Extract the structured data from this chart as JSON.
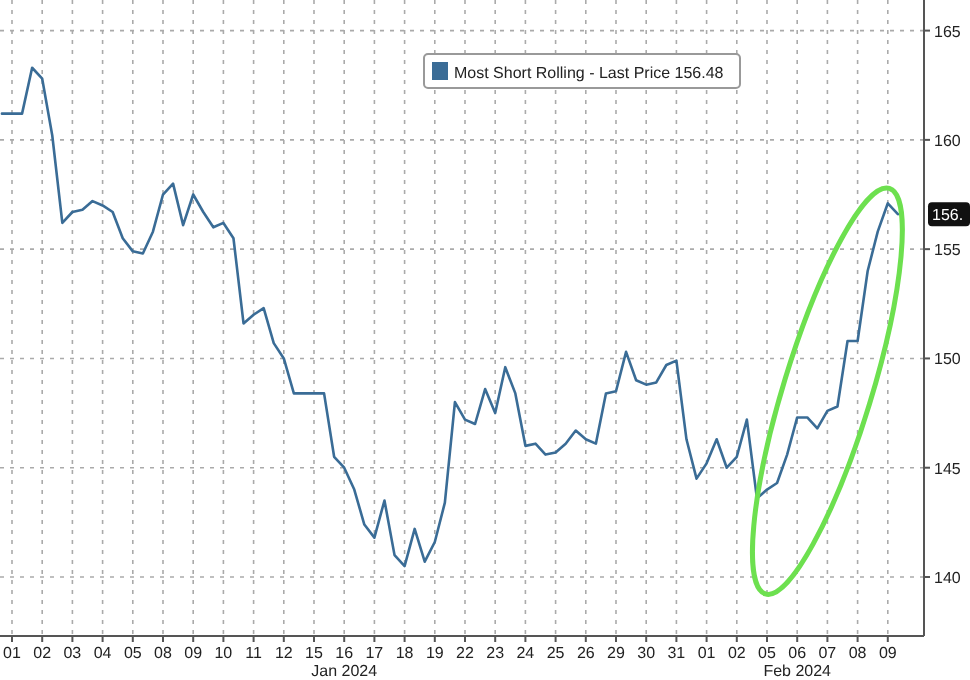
{
  "chart_data": {
    "type": "line",
    "legend": "top",
    "grid": true,
    "marker": "none",
    "line_style": "solid",
    "ylim": [
      137.3,
      166.4
    ],
    "yticks": [
      140,
      145,
      150,
      155,
      160,
      165
    ],
    "categories": [
      null,
      "01",
      null,
      null,
      "02",
      null,
      null,
      "03",
      null,
      null,
      "04",
      null,
      null,
      "05",
      null,
      null,
      "08",
      null,
      null,
      "09",
      null,
      null,
      "10",
      null,
      null,
      "11",
      null,
      null,
      "12",
      null,
      null,
      "15",
      null,
      null,
      "16",
      null,
      null,
      "17",
      null,
      null,
      "18",
      null,
      null,
      "19",
      null,
      null,
      "22",
      null,
      null,
      "23",
      null,
      null,
      "24",
      null,
      null,
      "25",
      null,
      null,
      "26",
      null,
      null,
      "29",
      null,
      null,
      "30",
      null,
      null,
      "31",
      null,
      null,
      "01",
      null,
      null,
      "02",
      null,
      null,
      "05",
      null,
      null,
      "06",
      null,
      null,
      "07",
      null,
      null,
      "08",
      null,
      null,
      "09",
      null
    ],
    "annotations": [
      "Jan 2024",
      "Feb 2024",
      "156."
    ],
    "series": [
      {
        "name": "Most Short Rolling - Last Price 156.48",
        "color": "#3a6c96",
        "values": [
          161.2,
          161.2,
          161.2,
          163.3,
          162.8,
          160.2,
          156.2,
          156.7,
          156.8,
          157.2,
          157.0,
          156.7,
          155.5,
          154.9,
          154.8,
          155.8,
          157.5,
          158.0,
          156.1,
          157.5,
          156.7,
          156.0,
          156.2,
          155.5,
          151.6,
          152.0,
          152.3,
          150.7,
          150.0,
          148.4,
          148.4,
          148.4,
          148.4,
          145.5,
          145.0,
          144.0,
          142.4,
          141.8,
          143.5,
          141.0,
          140.5,
          142.2,
          140.7,
          141.6,
          143.4,
          148.0,
          147.2,
          147.0,
          148.6,
          147.5,
          149.6,
          148.4,
          146.0,
          146.1,
          145.6,
          145.7,
          146.1,
          146.7,
          146.3,
          146.1,
          148.4,
          148.5,
          150.3,
          149.0,
          148.8,
          148.9,
          149.7,
          149.9,
          146.3,
          144.5,
          145.2,
          146.3,
          145.0,
          145.5,
          147.2,
          143.6,
          144.0,
          144.3,
          145.6,
          147.3,
          147.3,
          146.8,
          147.6,
          147.8,
          150.8,
          150.8,
          154.0,
          155.8,
          157.1,
          156.6
        ]
      }
    ]
  }
}
